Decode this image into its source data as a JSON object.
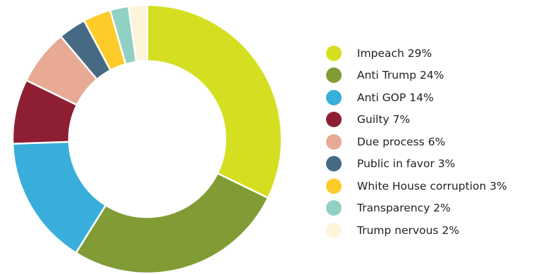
{
  "chart_data": {
    "type": "pie",
    "variant": "donut",
    "title": "",
    "legend_placement": "right",
    "categories": [
      "Impeach",
      "Anti Trump",
      "Anti GOP",
      "Guilty",
      "Due process",
      "Public in favor",
      "White House corruption",
      "Transparency",
      "Trump nervous"
    ],
    "values": [
      29,
      24,
      14,
      7,
      6,
      3,
      3,
      2,
      2
    ],
    "labels": [
      "Impeach 29%",
      "Anti Trump 24%",
      "Anti GOP 14%",
      "Guilty 7%",
      "Due process 6%",
      "Public in favor 3%",
      "White House corruption 3%",
      "Transparency 2%",
      "Trump nervous 2%"
    ],
    "unit": "%",
    "start": "top",
    "direction": "clockwise",
    "colors": [
      "#d5df22",
      "#819c34",
      "#39aedb",
      "#8e1f33",
      "#e8a995",
      "#466a84",
      "#fdcc2b",
      "#91d1c3",
      "#fdf4da"
    ]
  }
}
